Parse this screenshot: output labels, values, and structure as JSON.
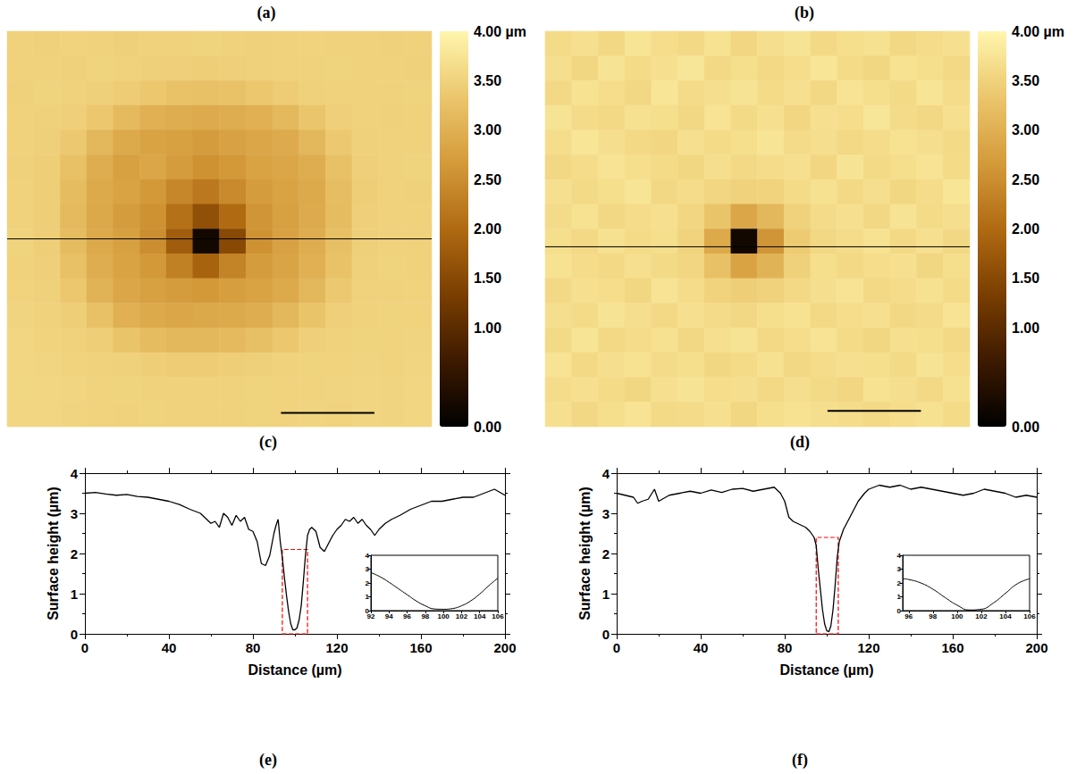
{
  "chart_data": [
    {
      "type": "heatmap",
      "panel": "(a)",
      "tick_labels": false,
      "image_extent": [
        0,
        200
      ],
      "colorbar_range": [
        0,
        4
      ],
      "colorbar_ticks": [
        {
          "value": 0,
          "label": "0.00"
        },
        {
          "value": 0.5,
          "label": ""
        },
        {
          "value": 1,
          "label": "1.00"
        },
        {
          "value": 1.5,
          "label": "1.50"
        },
        {
          "value": 2,
          "label": "2.00"
        },
        {
          "value": 2.5,
          "label": "2.50"
        },
        {
          "value": 3,
          "label": "3.00"
        },
        {
          "value": 3.5,
          "label": "3.50"
        },
        {
          "value": 4,
          "label": "4.00 µm"
        }
      ],
      "profile_y": 105,
      "scale_bar": {
        "x": [
          129,
          173
        ],
        "y": 193
      },
      "cells": [
        [
          3.5,
          3.48,
          3.52,
          3.5,
          3.47,
          3.5,
          3.49,
          3.51,
          3.5,
          3.48,
          3.5,
          3.52,
          3.49,
          3.5,
          3.48,
          3.5
        ],
        [
          3.49,
          3.5,
          3.48,
          3.51,
          3.5,
          3.47,
          3.46,
          3.45,
          3.46,
          3.48,
          3.5,
          3.49,
          3.51,
          3.5,
          3.49,
          3.48
        ],
        [
          3.48,
          3.51,
          3.49,
          3.47,
          3.42,
          3.35,
          3.28,
          3.25,
          3.28,
          3.35,
          3.42,
          3.48,
          3.5,
          3.49,
          3.5,
          3.51
        ],
        [
          3.5,
          3.48,
          3.46,
          3.35,
          3.15,
          3.0,
          2.95,
          2.92,
          2.95,
          3.0,
          3.12,
          3.32,
          3.46,
          3.5,
          3.48,
          3.49
        ],
        [
          3.49,
          3.47,
          3.38,
          3.1,
          2.9,
          2.8,
          2.75,
          2.7,
          2.78,
          2.85,
          2.92,
          3.1,
          3.38,
          3.48,
          3.5,
          3.5
        ],
        [
          3.48,
          3.45,
          3.25,
          2.95,
          2.75,
          2.85,
          2.7,
          2.55,
          2.65,
          2.8,
          2.85,
          2.95,
          3.25,
          3.46,
          3.49,
          3.51
        ],
        [
          3.5,
          3.44,
          3.18,
          2.9,
          2.8,
          2.65,
          2.4,
          2.2,
          2.45,
          2.7,
          2.8,
          2.9,
          3.2,
          3.45,
          3.5,
          3.48
        ],
        [
          3.49,
          3.44,
          3.15,
          2.88,
          2.7,
          2.55,
          2.1,
          1.6,
          2.0,
          2.6,
          2.75,
          2.92,
          3.18,
          3.46,
          3.49,
          3.5
        ],
        [
          3.51,
          3.45,
          3.18,
          2.9,
          2.75,
          2.5,
          1.8,
          0.2,
          1.5,
          2.55,
          2.78,
          2.95,
          3.22,
          3.47,
          3.5,
          3.49
        ],
        [
          3.5,
          3.46,
          3.25,
          2.95,
          2.8,
          2.65,
          2.3,
          1.9,
          2.35,
          2.7,
          2.82,
          3.0,
          3.28,
          3.48,
          3.51,
          3.5
        ],
        [
          3.52,
          3.48,
          3.35,
          3.05,
          2.85,
          2.75,
          2.7,
          2.65,
          2.72,
          2.8,
          2.9,
          3.1,
          3.38,
          3.49,
          3.5,
          3.52
        ],
        [
          3.53,
          3.5,
          3.45,
          3.25,
          3.0,
          2.9,
          2.85,
          2.88,
          2.9,
          2.95,
          3.1,
          3.3,
          3.46,
          3.5,
          3.51,
          3.52
        ],
        [
          3.55,
          3.52,
          3.49,
          3.45,
          3.3,
          3.18,
          3.1,
          3.1,
          3.15,
          3.22,
          3.35,
          3.46,
          3.5,
          3.51,
          3.52,
          3.53
        ],
        [
          3.56,
          3.54,
          3.52,
          3.5,
          3.48,
          3.45,
          3.42,
          3.42,
          3.44,
          3.47,
          3.5,
          3.51,
          3.52,
          3.53,
          3.52,
          3.54
        ],
        [
          3.57,
          3.55,
          3.54,
          3.52,
          3.51,
          3.5,
          3.5,
          3.49,
          3.5,
          3.51,
          3.52,
          3.52,
          3.53,
          3.54,
          3.53,
          3.55
        ],
        [
          3.56,
          3.55,
          3.53,
          3.52,
          3.5,
          3.51,
          3.49,
          3.5,
          3.5,
          3.51,
          3.52,
          3.53,
          3.52,
          3.54,
          3.53,
          3.55
        ]
      ]
    },
    {
      "type": "heatmap",
      "panel": "(b)",
      "tick_labels": false,
      "image_extent": [
        0,
        200
      ],
      "colorbar_range": [
        0,
        4
      ],
      "colorbar_ticks": [
        {
          "value": 0,
          "label": "0.00"
        },
        {
          "value": 0.5,
          "label": ""
        },
        {
          "value": 1,
          "label": "1.00"
        },
        {
          "value": 1.5,
          "label": "1.50"
        },
        {
          "value": 2,
          "label": "2.00"
        },
        {
          "value": 2.5,
          "label": "2.50"
        },
        {
          "value": 3,
          "label": "3.00"
        },
        {
          "value": 3.5,
          "label": "3.50"
        },
        {
          "value": 4,
          "label": "4.00 µm"
        }
      ],
      "profile_y": 109,
      "scale_bar": {
        "x": [
          133,
          177
        ],
        "y": 192
      },
      "cells": [
        [
          3.62,
          3.7,
          3.58,
          3.75,
          3.65,
          3.6,
          3.72,
          3.55,
          3.68,
          3.74,
          3.6,
          3.66,
          3.71,
          3.58,
          3.64,
          3.7
        ],
        [
          3.68,
          3.57,
          3.74,
          3.62,
          3.7,
          3.78,
          3.6,
          3.66,
          3.59,
          3.65,
          3.76,
          3.62,
          3.57,
          3.72,
          3.66,
          3.6
        ],
        [
          3.6,
          3.72,
          3.65,
          3.58,
          3.76,
          3.63,
          3.68,
          3.74,
          3.62,
          3.7,
          3.58,
          3.73,
          3.66,
          3.61,
          3.75,
          3.64
        ],
        [
          3.74,
          3.63,
          3.59,
          3.71,
          3.66,
          3.58,
          3.73,
          3.61,
          3.69,
          3.56,
          3.7,
          3.65,
          3.78,
          3.63,
          3.58,
          3.69
        ],
        [
          3.65,
          3.76,
          3.68,
          3.6,
          3.55,
          3.7,
          3.62,
          3.66,
          3.75,
          3.63,
          3.68,
          3.59,
          3.64,
          3.72,
          3.67,
          3.61
        ],
        [
          3.58,
          3.64,
          3.73,
          3.66,
          3.62,
          3.57,
          3.68,
          3.6,
          3.64,
          3.7,
          3.56,
          3.74,
          3.61,
          3.66,
          3.73,
          3.62
        ],
        [
          3.7,
          3.61,
          3.66,
          3.75,
          3.58,
          3.64,
          3.55,
          3.5,
          3.52,
          3.62,
          3.71,
          3.6,
          3.68,
          3.57,
          3.64,
          3.76
        ],
        [
          3.63,
          3.72,
          3.58,
          3.64,
          3.7,
          3.56,
          3.3,
          2.85,
          3.1,
          3.5,
          3.63,
          3.69,
          3.58,
          3.74,
          3.62,
          3.67
        ],
        [
          3.66,
          3.59,
          3.71,
          3.62,
          3.66,
          3.52,
          2.9,
          0.2,
          2.6,
          3.4,
          3.58,
          3.64,
          3.72,
          3.6,
          3.69,
          3.58
        ],
        [
          3.72,
          3.64,
          3.6,
          3.69,
          3.61,
          3.55,
          3.25,
          2.8,
          3.05,
          3.48,
          3.66,
          3.59,
          3.65,
          3.7,
          3.57,
          3.66
        ],
        [
          3.59,
          3.7,
          3.65,
          3.57,
          3.73,
          3.64,
          3.52,
          3.45,
          3.5,
          3.6,
          3.68,
          3.73,
          3.6,
          3.64,
          3.71,
          3.62
        ],
        [
          3.67,
          3.62,
          3.74,
          3.68,
          3.6,
          3.7,
          3.63,
          3.58,
          3.66,
          3.72,
          3.59,
          3.65,
          3.7,
          3.58,
          3.63,
          3.73
        ],
        [
          3.61,
          3.75,
          3.59,
          3.64,
          3.71,
          3.58,
          3.69,
          3.74,
          3.6,
          3.65,
          3.73,
          3.62,
          3.57,
          3.69,
          3.66,
          3.6
        ],
        [
          3.73,
          3.6,
          3.68,
          3.72,
          3.63,
          3.66,
          3.57,
          3.62,
          3.71,
          3.58,
          3.64,
          3.7,
          3.66,
          3.61,
          3.74,
          3.65
        ],
        [
          3.64,
          3.69,
          3.62,
          3.57,
          3.7,
          3.74,
          3.65,
          3.68,
          3.59,
          3.67,
          3.61,
          3.56,
          3.72,
          3.68,
          3.6,
          3.71
        ],
        [
          3.7,
          3.58,
          3.66,
          3.73,
          3.61,
          3.63,
          3.7,
          3.57,
          3.66,
          3.72,
          3.68,
          3.64,
          3.59,
          3.65,
          3.71,
          3.62
        ]
      ]
    },
    {
      "type": "line",
      "panel": "(c)",
      "label_below": "(e)",
      "xlabel": "Distance (µm)",
      "ylabel": "Surface height (µm)",
      "color": "#000000",
      "xlim": [
        0,
        200
      ],
      "xticks": [
        0,
        40,
        80,
        120,
        160,
        200
      ],
      "ylim": [
        0,
        4
      ],
      "yticks": [
        0,
        1,
        2,
        3,
        4
      ],
      "x": [
        0,
        5,
        10,
        15,
        20,
        25,
        30,
        35,
        40,
        45,
        50,
        55,
        58,
        60,
        62,
        64,
        66,
        68,
        70,
        72,
        74,
        76,
        78,
        80,
        82,
        84,
        86,
        88,
        90,
        91,
        92,
        93,
        94,
        95,
        96,
        97,
        98,
        99,
        100,
        101,
        102,
        103,
        104,
        105,
        106,
        107,
        108,
        110,
        112,
        114,
        116,
        118,
        120,
        122,
        124,
        126,
        128,
        130,
        132,
        134,
        136,
        138,
        140,
        143,
        146,
        150,
        155,
        160,
        165,
        170,
        175,
        180,
        185,
        190,
        195,
        200
      ],
      "values": [
        3.5,
        3.52,
        3.48,
        3.45,
        3.47,
        3.42,
        3.4,
        3.35,
        3.3,
        3.22,
        3.1,
        3.0,
        2.85,
        2.75,
        2.8,
        2.65,
        3.0,
        2.9,
        2.7,
        2.95,
        2.8,
        2.9,
        2.6,
        2.55,
        2.3,
        1.75,
        1.7,
        1.95,
        2.5,
        2.7,
        2.85,
        2.3,
        1.9,
        1.4,
        0.95,
        0.55,
        0.25,
        0.1,
        0.1,
        0.15,
        0.35,
        0.7,
        1.3,
        1.95,
        2.45,
        2.6,
        2.65,
        2.55,
        2.15,
        2.05,
        2.25,
        2.45,
        2.6,
        2.7,
        2.85,
        2.8,
        2.9,
        2.75,
        2.85,
        2.7,
        2.6,
        2.45,
        2.6,
        2.75,
        2.85,
        2.95,
        3.1,
        3.2,
        3.3,
        3.3,
        3.35,
        3.4,
        3.4,
        3.5,
        3.6,
        3.45
      ],
      "highlight": {
        "x": [
          94,
          106
        ],
        "y": [
          0,
          2.1
        ],
        "color": "#ff0000",
        "line_style": "dashed"
      },
      "inset": {
        "xlim": [
          92,
          106
        ],
        "xticks": [
          92,
          94,
          96,
          98,
          100,
          102,
          104,
          106
        ],
        "ylim": [
          0,
          4
        ],
        "yticks": [
          0,
          1,
          2,
          3,
          4
        ],
        "x": [
          92,
          93,
          94,
          95,
          96,
          97,
          98,
          99,
          100,
          101,
          102,
          103,
          104,
          105,
          106
        ],
        "values": [
          2.75,
          2.45,
          2.05,
          1.6,
          1.15,
          0.7,
          0.35,
          0.12,
          0.1,
          0.15,
          0.35,
          0.7,
          1.2,
          1.8,
          2.35
        ]
      }
    },
    {
      "type": "line",
      "panel": "(d)",
      "label_below": "(f)",
      "xlabel": "Distance (µm)",
      "ylabel": "Surface height (µm)",
      "color": "#000000",
      "xlim": [
        0,
        200
      ],
      "xticks": [
        0,
        40,
        80,
        120,
        160,
        200
      ],
      "ylim": [
        0,
        4
      ],
      "yticks": [
        0,
        1,
        2,
        3,
        4
      ],
      "x": [
        0,
        4,
        8,
        10,
        12,
        15,
        18,
        20,
        25,
        30,
        35,
        40,
        45,
        50,
        55,
        60,
        65,
        70,
        75,
        78,
        80,
        82,
        84,
        86,
        88,
        90,
        92,
        94,
        95,
        96,
        97,
        98,
        99,
        100,
        101,
        102,
        103,
        104,
        105,
        106,
        107,
        108,
        110,
        112,
        115,
        118,
        120,
        125,
        130,
        135,
        140,
        145,
        150,
        155,
        160,
        165,
        170,
        175,
        180,
        185,
        190,
        195,
        200
      ],
      "values": [
        3.5,
        3.45,
        3.4,
        3.25,
        3.3,
        3.35,
        3.6,
        3.3,
        3.45,
        3.5,
        3.55,
        3.5,
        3.58,
        3.52,
        3.6,
        3.62,
        3.55,
        3.6,
        3.65,
        3.5,
        3.3,
        2.9,
        2.8,
        2.75,
        2.7,
        2.65,
        2.55,
        2.4,
        2.2,
        1.6,
        1.1,
        0.6,
        0.25,
        0.08,
        0.05,
        0.2,
        0.6,
        1.2,
        1.9,
        2.3,
        2.45,
        2.6,
        2.8,
        3.0,
        3.3,
        3.5,
        3.6,
        3.7,
        3.65,
        3.7,
        3.6,
        3.65,
        3.6,
        3.55,
        3.5,
        3.45,
        3.5,
        3.6,
        3.55,
        3.5,
        3.4,
        3.45,
        3.4
      ],
      "highlight": {
        "x": [
          95,
          105.5
        ],
        "y": [
          0,
          2.4
        ],
        "color": "#ff0000",
        "line_style": "dashed"
      },
      "inset": {
        "xlim": [
          95.5,
          106
        ],
        "xticks": [
          96,
          98,
          100,
          102,
          104,
          106
        ],
        "ylim": [
          0,
          4
        ],
        "yticks": [
          0,
          1,
          2,
          3,
          4
        ],
        "x": [
          95.5,
          96,
          97,
          98,
          99,
          100,
          101,
          102,
          103,
          104,
          105,
          106
        ],
        "values": [
          2.3,
          2.25,
          2.0,
          1.55,
          0.95,
          0.4,
          0.05,
          0.1,
          0.55,
          1.25,
          1.95,
          2.3
        ]
      }
    }
  ]
}
